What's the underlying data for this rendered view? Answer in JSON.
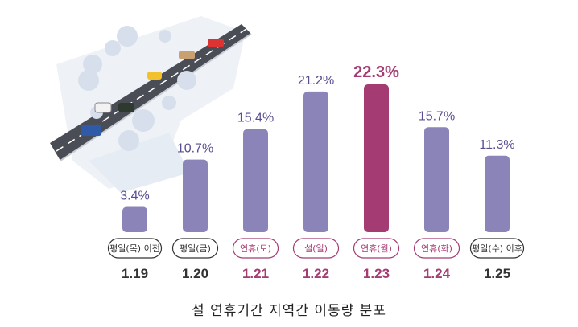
{
  "caption": "설 연휴기간 지역간 이동량 분포",
  "colors": {
    "bar": "#8a84b8",
    "highlight": "#a43b72",
    "value_label": "#5a4e92",
    "tag_border_default": "#333333",
    "date_default": "#333333"
  },
  "chart_data": {
    "type": "bar",
    "title": "",
    "xlabel": "",
    "ylabel": "",
    "ylim": [
      0,
      25
    ],
    "grid": false,
    "legend": "none",
    "unit": "%",
    "categories": [
      "평일(목) 이전",
      "평일(금)",
      "연휴(토)",
      "설(일)",
      "연휴(월)",
      "연휴(화)",
      "평일(수) 이후"
    ],
    "dates": [
      "1.19",
      "1.20",
      "1.21",
      "1.22",
      "1.23",
      "1.24",
      "1.25"
    ],
    "values": [
      3.4,
      10.7,
      15.4,
      21.2,
      22.3,
      15.7,
      11.3
    ],
    "value_labels": [
      "3.4%",
      "10.7%",
      "15.4%",
      "21.2%",
      "22.3%",
      "15.7%",
      "11.3%"
    ],
    "highlight_index": 4,
    "holiday_indices": [
      2,
      3,
      4,
      5
    ]
  }
}
